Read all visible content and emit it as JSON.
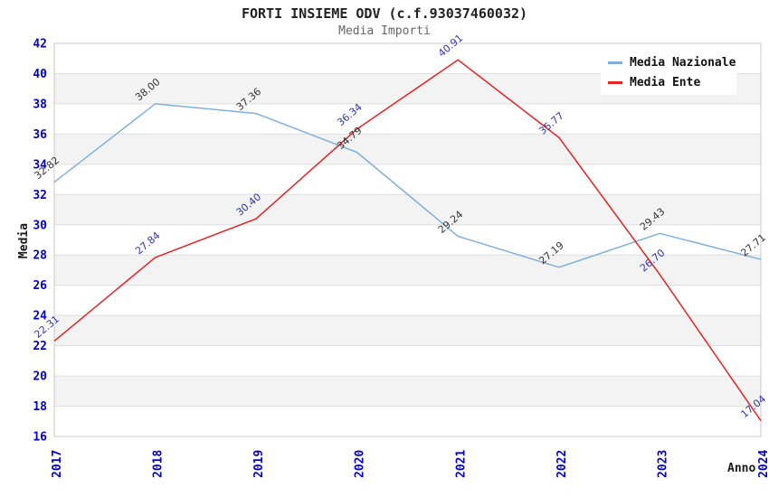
{
  "chart_data": {
    "type": "line",
    "title": "FORTI INSIEME ODV (c.f.93037460032)",
    "subtitle": "Media Importi",
    "xlabel": "Anno",
    "ylabel": "Media",
    "categories": [
      "2017",
      "2018",
      "2019",
      "2020",
      "2021",
      "2022",
      "2023",
      "2024"
    ],
    "series": [
      {
        "name": "Media Nazionale",
        "values": [
          32.82,
          38.0,
          37.36,
          34.79,
          29.24,
          27.19,
          29.43,
          27.71
        ],
        "color": "#7fb0dd",
        "label_color": "#333333"
      },
      {
        "name": "Media Ente",
        "values": [
          22.31,
          27.84,
          30.4,
          36.34,
          40.91,
          35.77,
          26.7,
          17.04
        ],
        "color": "#e62222",
        "label_color": "#3333aa"
      }
    ],
    "ylim": [
      16,
      42
    ],
    "ytick_step": 2,
    "grid": "horizontal-bands-alternating",
    "legend_position": "top-right",
    "colors": {
      "band": "#f3f3f3",
      "grid": "#e0e0e0",
      "border": "#c9c9c9",
      "tick_text": "#0000d0",
      "axis_text": "#1a1a1a"
    }
  }
}
